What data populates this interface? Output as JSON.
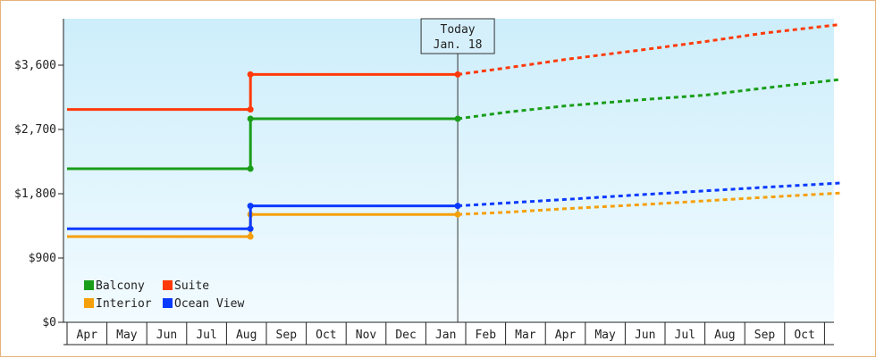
{
  "chart_data": {
    "type": "line",
    "title": "",
    "xlabel": "",
    "ylabel": "",
    "x_ticks": [
      "Apr",
      "May",
      "Jun",
      "Jul",
      "Aug",
      "Sep",
      "Oct",
      "Nov",
      "Dec",
      "Jan",
      "Feb",
      "Mar",
      "Apr",
      "May",
      "Jun",
      "Jul",
      "Aug",
      "Sep",
      "Oct"
    ],
    "y_ticks": [
      "$0",
      "$900",
      "$1,800",
      "$2,700",
      "$3,600"
    ],
    "y_tick_values": [
      0,
      900,
      1800,
      2700,
      3600
    ],
    "ylim": [
      0,
      4250
    ],
    "xlim": [
      -0.5,
      18.9
    ],
    "today": {
      "line1": "Today",
      "line2": "Jan. 18",
      "x": 9.3
    },
    "legend": {
      "position": "bottom-left"
    },
    "grid": false,
    "series": [
      {
        "name": "Balcony",
        "color": "#1a9e1a",
        "actual": [
          [
            -0.5,
            2150
          ],
          [
            4.1,
            2150
          ],
          [
            4.1,
            2850
          ],
          [
            9.3,
            2850
          ]
        ],
        "projected": [
          [
            9.3,
            2850
          ],
          [
            10.5,
            2940
          ],
          [
            12,
            3030
          ],
          [
            14,
            3120
          ],
          [
            15.5,
            3180
          ],
          [
            17,
            3280
          ],
          [
            18.9,
            3400
          ]
        ]
      },
      {
        "name": "Suite",
        "color": "#ff3a0a",
        "actual": [
          [
            -0.5,
            2980
          ],
          [
            4.1,
            2980
          ],
          [
            4.1,
            3470
          ],
          [
            9.3,
            3470
          ]
        ],
        "projected": [
          [
            9.3,
            3470
          ],
          [
            10.5,
            3560
          ],
          [
            12,
            3680
          ],
          [
            14,
            3820
          ],
          [
            15.5,
            3930
          ],
          [
            17,
            4050
          ],
          [
            18.9,
            4170
          ]
        ]
      },
      {
        "name": "Interior",
        "color": "#f5a00a",
        "actual": [
          [
            -0.5,
            1200
          ],
          [
            4.1,
            1200
          ],
          [
            4.1,
            1510
          ],
          [
            9.3,
            1510
          ]
        ],
        "projected": [
          [
            9.3,
            1510
          ],
          [
            10.5,
            1540
          ],
          [
            12,
            1590
          ],
          [
            14,
            1650
          ],
          [
            15.5,
            1700
          ],
          [
            17,
            1750
          ],
          [
            18.9,
            1810
          ]
        ]
      },
      {
        "name": "Ocean View",
        "color": "#0a3aff",
        "actual": [
          [
            -0.5,
            1310
          ],
          [
            4.1,
            1310
          ],
          [
            4.1,
            1630
          ],
          [
            9.3,
            1630
          ]
        ],
        "projected": [
          [
            9.3,
            1630
          ],
          [
            10.5,
            1670
          ],
          [
            12,
            1720
          ],
          [
            14,
            1790
          ],
          [
            15.5,
            1840
          ],
          [
            17,
            1890
          ],
          [
            18.9,
            1950
          ]
        ]
      }
    ]
  }
}
